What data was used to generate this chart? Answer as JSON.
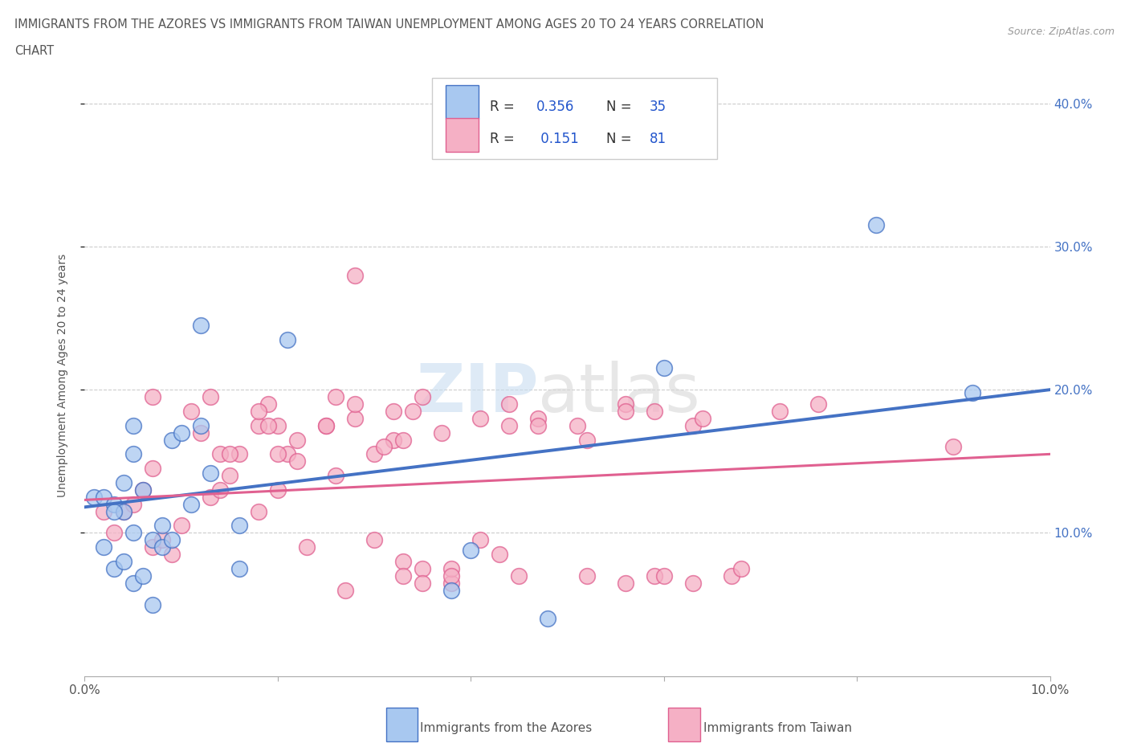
{
  "title_line1": "IMMIGRANTS FROM THE AZORES VS IMMIGRANTS FROM TAIWAN UNEMPLOYMENT AMONG AGES 20 TO 24 YEARS CORRELATION",
  "title_line2": "CHART",
  "source": "Source: ZipAtlas.com",
  "ylabel": "Unemployment Among Ages 20 to 24 years",
  "xlim": [
    0.0,
    0.1
  ],
  "ylim": [
    0.0,
    0.42
  ],
  "color_azores": "#A8C8F0",
  "color_taiwan": "#F5B0C5",
  "trendline_color_azores": "#4472C4",
  "trendline_color_taiwan": "#E06090",
  "watermark_zip": "ZIP",
  "watermark_atlas": "atlas",
  "azores_x": [
    0.001,
    0.002,
    0.003,
    0.004,
    0.005,
    0.006,
    0.007,
    0.008,
    0.009,
    0.01,
    0.011,
    0.012,
    0.003,
    0.004,
    0.005,
    0.016,
    0.005,
    0.008,
    0.009,
    0.002,
    0.021,
    0.012,
    0.003,
    0.004,
    0.005,
    0.006,
    0.007,
    0.016,
    0.013,
    0.04,
    0.048,
    0.06,
    0.038,
    0.082,
    0.092
  ],
  "azores_y": [
    0.125,
    0.125,
    0.12,
    0.115,
    0.1,
    0.13,
    0.095,
    0.09,
    0.165,
    0.17,
    0.12,
    0.175,
    0.115,
    0.135,
    0.155,
    0.105,
    0.175,
    0.105,
    0.095,
    0.09,
    0.235,
    0.245,
    0.075,
    0.08,
    0.065,
    0.07,
    0.05,
    0.075,
    0.142,
    0.088,
    0.04,
    0.215,
    0.06,
    0.315,
    0.198
  ],
  "taiwan_x": [
    0.002,
    0.003,
    0.004,
    0.005,
    0.006,
    0.007,
    0.008,
    0.009,
    0.01,
    0.011,
    0.012,
    0.013,
    0.014,
    0.015,
    0.016,
    0.007,
    0.018,
    0.019,
    0.02,
    0.021,
    0.022,
    0.013,
    0.014,
    0.015,
    0.026,
    0.007,
    0.018,
    0.018,
    0.019,
    0.02,
    0.022,
    0.025,
    0.028,
    0.02,
    0.033,
    0.026,
    0.03,
    0.023,
    0.028,
    0.032,
    0.035,
    0.028,
    0.03,
    0.033,
    0.025,
    0.038,
    0.032,
    0.035,
    0.038,
    0.041,
    0.043,
    0.045,
    0.027,
    0.033,
    0.035,
    0.038,
    0.031,
    0.044,
    0.047,
    0.051,
    0.034,
    0.037,
    0.041,
    0.044,
    0.047,
    0.052,
    0.056,
    0.059,
    0.063,
    0.067,
    0.052,
    0.056,
    0.059,
    0.063,
    0.056,
    0.06,
    0.064,
    0.068,
    0.072,
    0.076,
    0.09
  ],
  "taiwan_y": [
    0.115,
    0.1,
    0.115,
    0.12,
    0.13,
    0.09,
    0.095,
    0.085,
    0.105,
    0.185,
    0.17,
    0.125,
    0.13,
    0.14,
    0.155,
    0.195,
    0.115,
    0.19,
    0.175,
    0.155,
    0.165,
    0.195,
    0.155,
    0.155,
    0.14,
    0.145,
    0.175,
    0.185,
    0.175,
    0.155,
    0.15,
    0.175,
    0.18,
    0.13,
    0.08,
    0.195,
    0.095,
    0.09,
    0.28,
    0.165,
    0.075,
    0.19,
    0.155,
    0.165,
    0.175,
    0.065,
    0.185,
    0.195,
    0.075,
    0.095,
    0.085,
    0.07,
    0.06,
    0.07,
    0.065,
    0.07,
    0.16,
    0.19,
    0.18,
    0.175,
    0.185,
    0.17,
    0.18,
    0.175,
    0.175,
    0.07,
    0.065,
    0.07,
    0.065,
    0.07,
    0.165,
    0.19,
    0.185,
    0.175,
    0.185,
    0.07,
    0.18,
    0.075,
    0.185,
    0.19,
    0.16
  ]
}
